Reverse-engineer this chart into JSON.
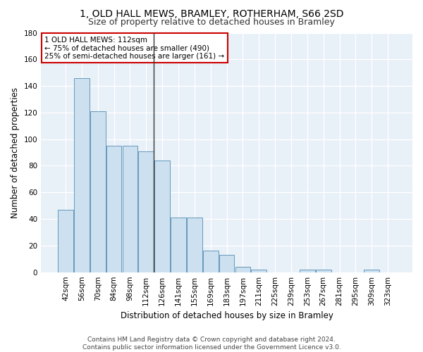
{
  "title1": "1, OLD HALL MEWS, BRAMLEY, ROTHERHAM, S66 2SD",
  "title2": "Size of property relative to detached houses in Bramley",
  "xlabel": "Distribution of detached houses by size in Bramley",
  "ylabel": "Number of detached properties",
  "categories": [
    "42sqm",
    "56sqm",
    "70sqm",
    "84sqm",
    "98sqm",
    "112sqm",
    "126sqm",
    "141sqm",
    "155sqm",
    "169sqm",
    "183sqm",
    "197sqm",
    "211sqm",
    "225sqm",
    "239sqm",
    "253sqm",
    "267sqm",
    "281sqm",
    "295sqm",
    "309sqm",
    "323sqm"
  ],
  "values": [
    47,
    146,
    121,
    95,
    95,
    91,
    84,
    41,
    41,
    16,
    13,
    4,
    2,
    0,
    0,
    2,
    2,
    0,
    0,
    2,
    0
  ],
  "bar_color": "#cce0f0",
  "bar_edge_color": "#6699bb",
  "subject_bar_index": 5,
  "vline_color": "#333333",
  "ylim": [
    0,
    180
  ],
  "yticks": [
    0,
    20,
    40,
    60,
    80,
    100,
    120,
    140,
    160,
    180
  ],
  "annotation_text": "1 OLD HALL MEWS: 112sqm\n← 75% of detached houses are smaller (490)\n25% of semi-detached houses are larger (161) →",
  "annotation_box_color": "#ffffff",
  "annotation_border_color": "#cc0000",
  "background_color": "#ffffff",
  "plot_bg_color": "#e8f0f8",
  "grid_color": "#ffffff",
  "title_fontsize": 10,
  "subtitle_fontsize": 9,
  "axis_label_fontsize": 8.5,
  "tick_fontsize": 7.5,
  "footer_fontsize": 6.5
}
